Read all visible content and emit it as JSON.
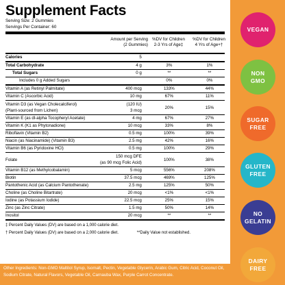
{
  "panel": {
    "title": "Supplement Facts",
    "serving_size": "Serving Size: 2 Gummies",
    "servings_per_container": "Servings Per Container: 60",
    "header": {
      "amount_line1": "Amount per Serving",
      "amount_line2": "(2 Gummies)",
      "dv2_line1": "%DV for Children",
      "dv2_line2": "2-3 Yrs of Age‡",
      "dv4_line1": "%DV for Children",
      "dv4_line2": "4 Yrs of Age+†"
    },
    "rows": [
      {
        "name": "Calories",
        "amount": "5",
        "dv2": "",
        "dv4": "",
        "indent": 0,
        "bold": true,
        "heavy": true
      },
      {
        "name": "Total Carbohydrate",
        "amount": "4 g",
        "dv2": "3%",
        "dv4": "1%",
        "indent": 0,
        "bold": true
      },
      {
        "name": "Total Sugars",
        "amount": "0 g",
        "dv2": "**",
        "dv4": "**",
        "indent": 1,
        "bold": true
      },
      {
        "name": "Includes 0 g Added Sugars",
        "amount": "",
        "dv2": "0%",
        "dv4": "0%",
        "indent": 2,
        "bold": false,
        "heavy": true
      },
      {
        "name": "Vitamin A (as Retinyl Palmitate)",
        "amount": "400 mcg",
        "dv2": "133%",
        "dv4": "44%",
        "indent": 0
      },
      {
        "name": "Vitamin C (Ascorbic Acid)",
        "amount": "10 mg",
        "dv2": "67%",
        "dv4": "11%",
        "indent": 0
      },
      {
        "name": "Vitamin D3 (as Vegan Cholecalciferol)",
        "name2": "(Plant-sourced from Lichen)",
        "amount": "(120 IU)",
        "amount2": "3 mcg",
        "dv2": "20%",
        "dv4": "15%",
        "indent": 0,
        "tall": true
      },
      {
        "name": "Vitamin E (as dl-alpha Tocopheryl Acetate)",
        "amount": "4 mg",
        "dv2": "67%",
        "dv4": "27%",
        "indent": 0
      },
      {
        "name": "Vitamin K (K1 as Phytonadione)",
        "amount": "10 mcg",
        "dv2": "33%",
        "dv4": "8%",
        "indent": 0
      },
      {
        "name": "Riboflavin (Vitamin B2)",
        "amount": "0.5 mg",
        "dv2": "100%",
        "dv4": "39%",
        "indent": 0
      },
      {
        "name": "Niacin (as Niacinamide) (Vitamin B3)",
        "amount": "2.5 mg",
        "dv2": "42%",
        "dv4": "16%",
        "indent": 0
      },
      {
        "name": "Vitamin B6 (as Pyridoxine HCl)",
        "amount": "0.5 mg",
        "dv2": "100%",
        "dv4": "29%",
        "indent": 0
      },
      {
        "name": "Folate",
        "amount": "150 mcg DFE",
        "amount2": "(as 90 mcg Folic Acid)",
        "dv2": "100%",
        "dv4": "38%",
        "indent": 0,
        "tall": true
      },
      {
        "name": "Vitamin B12 (as Methylcobalamin)",
        "amount": "5 mcg",
        "dv2": "556%",
        "dv4": "208%",
        "indent": 0
      },
      {
        "name": "Biotin",
        "amount": "37.5 mcg",
        "dv2": "469%",
        "dv4": "125%",
        "indent": 0
      },
      {
        "name": "Pantothenic Acid (as Calcium Pantothenate)",
        "amount": "2.5 mg",
        "dv2": "125%",
        "dv4": "50%",
        "indent": 0
      },
      {
        "name": "Choline (as Choline Bitartrate)",
        "amount": "20 mcg",
        "dv2": "<1%",
        "dv4": "<1%",
        "indent": 0
      },
      {
        "name": "Iodine (as Potassium Iodide)",
        "amount": "22.5 mcg",
        "dv2": "25%",
        "dv4": "15%",
        "indent": 0
      },
      {
        "name": "Zinc (as Zinc Citrate)",
        "amount": "1.5 mg",
        "dv2": "50%",
        "dv4": "14%",
        "indent": 0
      },
      {
        "name": "Inositol",
        "amount": "20 mcg",
        "dv2": "**",
        "dv4": "**",
        "indent": 0,
        "heavy": true
      }
    ],
    "footnotes": {
      "line1": "‡ Percent Daily Values (DV) are based on a 1,000 calorie diet.",
      "line2a": "† Percent Daily Values (DV) are based on a 2,000 calorie diet.",
      "line2b": "**Daily Value not established."
    }
  },
  "ingredients": "Other Ingredients: Non-GMO Maltitol Syrup, Isomalt, Pectin, Vegetable Glycerin, Arabic Gum, Citric Acid, Coconut Oil, Sodium Citrate, Natural Flavors, Vegetable Oil, Carnauba Wax, Purple Carrot Concentrate.",
  "badges": [
    {
      "id": "vegan",
      "line1": "VEGAN",
      "line2": "",
      "color": "#e0226e"
    },
    {
      "id": "non-gmo",
      "line1": "NON",
      "line2": "GMO",
      "color": "#7ec142"
    },
    {
      "id": "sugar-free",
      "line1": "SUGAR",
      "line2": "FREE",
      "color": "#ef6a2b"
    },
    {
      "id": "gluten-free",
      "line1": "GLUTEN",
      "line2": "FREE",
      "color": "#25b6c9"
    },
    {
      "id": "no-gelatin",
      "line1": "NO",
      "line2": "GELATIN",
      "color": "#3a3d93"
    },
    {
      "id": "dairy-free",
      "line1": "DAIRY",
      "line2": "FREE",
      "color": "#f2a83a"
    }
  ],
  "colors": {
    "background": "#f29a38",
    "panel": "#ffffff"
  }
}
